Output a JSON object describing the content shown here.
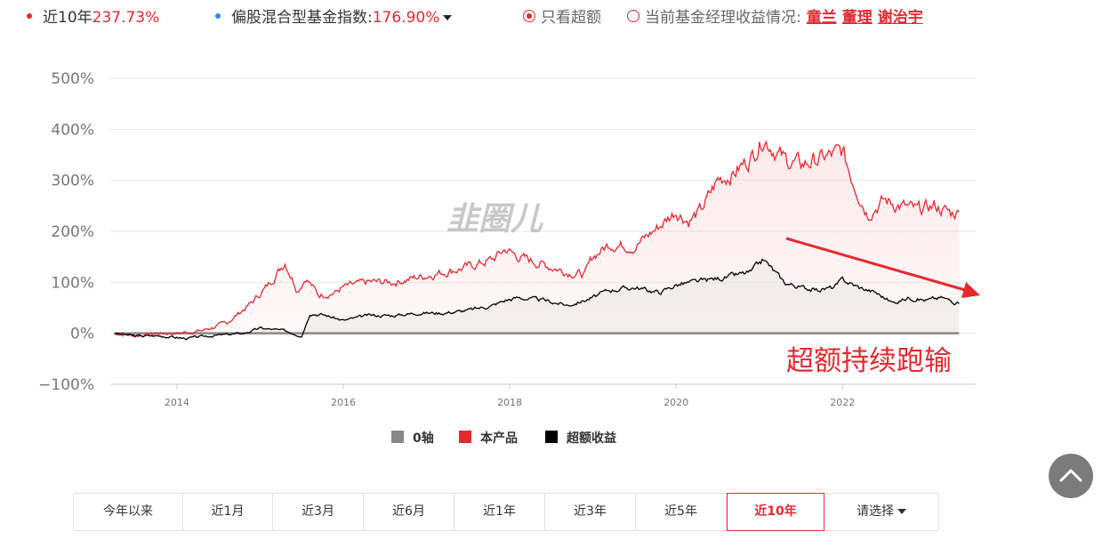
{
  "topbar": {
    "product_label": "近10年",
    "product_value": "237.73%",
    "index_label": "偏股混合型基金指数:",
    "index_value": "176.90%",
    "excess_only_label": "只看超额",
    "manager_label": "当前基金经理收益情况:",
    "managers": [
      "童兰",
      "董理",
      "谢治宇"
    ],
    "colors": {
      "product_dot": "#e5292f",
      "index_dot": "#2a8cf0",
      "accent": "#e5292f"
    }
  },
  "chart_data": {
    "type": "line",
    "yticks": [
      "500%",
      "400%",
      "300%",
      "200%",
      "100%",
      "0%",
      "−100%"
    ],
    "ylim": [
      -100,
      500
    ],
    "xticks": [
      "2014",
      "2016",
      "2018",
      "2020",
      "2022"
    ],
    "xlim": [
      2013.2,
      2023.6
    ],
    "watermark": "韭圈儿",
    "annotation": "超额持续跑输",
    "series": [
      {
        "name": "0轴",
        "color": "#888888",
        "x": [
          2013.25,
          2023.4
        ],
        "y": [
          0,
          0
        ]
      },
      {
        "name": "本产品",
        "color": "#e5292f",
        "x": [
          2013.25,
          2013.5,
          2013.8,
          2014.0,
          2014.3,
          2014.6,
          2014.9,
          2015.1,
          2015.3,
          2015.45,
          2015.55,
          2015.7,
          2015.9,
          2016.0,
          2016.3,
          2016.6,
          2016.9,
          2017.2,
          2017.5,
          2017.8,
          2017.95,
          2018.1,
          2018.3,
          2018.5,
          2018.7,
          2018.9,
          2019.0,
          2019.2,
          2019.5,
          2019.8,
          2020.0,
          2020.15,
          2020.3,
          2020.5,
          2020.7,
          2020.9,
          2021.05,
          2021.3,
          2021.5,
          2021.7,
          2022.0,
          2022.1,
          2022.3,
          2022.5,
          2022.7,
          2022.9,
          2023.1,
          2023.3,
          2023.4
        ],
        "y": [
          0,
          -5,
          0,
          0,
          5,
          20,
          60,
          95,
          140,
          85,
          110,
          75,
          80,
          90,
          100,
          100,
          110,
          120,
          130,
          145,
          165,
          150,
          140,
          130,
          120,
          115,
          150,
          175,
          170,
          210,
          240,
          220,
          240,
          300,
          315,
          345,
          385,
          340,
          330,
          340,
          355,
          310,
          235,
          260,
          250,
          240,
          250,
          235,
          238
        ]
      },
      {
        "name": "超额收益",
        "color": "#000000",
        "x": [
          2013.25,
          2013.5,
          2013.8,
          2014.1,
          2014.4,
          2014.8,
          2015.0,
          2015.3,
          2015.5,
          2015.6,
          2015.8,
          2016.0,
          2016.3,
          2016.6,
          2016.9,
          2017.2,
          2017.5,
          2017.8,
          2017.95,
          2018.1,
          2018.4,
          2018.7,
          2019.0,
          2019.2,
          2019.5,
          2019.8,
          2020.0,
          2020.2,
          2020.4,
          2020.6,
          2020.9,
          2021.05,
          2021.3,
          2021.5,
          2021.7,
          2021.9,
          2022.0,
          2022.2,
          2022.4,
          2022.6,
          2022.8,
          2023.0,
          2023.2,
          2023.4
        ],
        "y": [
          0,
          -5,
          -5,
          -10,
          -5,
          0,
          10,
          5,
          -5,
          40,
          35,
          25,
          35,
          35,
          40,
          40,
          45,
          55,
          65,
          70,
          65,
          55,
          70,
          85,
          90,
          80,
          95,
          100,
          105,
          110,
          120,
          145,
          100,
          90,
          85,
          90,
          105,
          90,
          80,
          60,
          70,
          65,
          70,
          58
        ]
      }
    ],
    "legend_position": "bottom-center"
  },
  "range_tabs": [
    "今年以来",
    "近1月",
    "近3月",
    "近6月",
    "近1年",
    "近3年",
    "近5年",
    "近10年",
    "请选择"
  ],
  "active_range": "近10年"
}
